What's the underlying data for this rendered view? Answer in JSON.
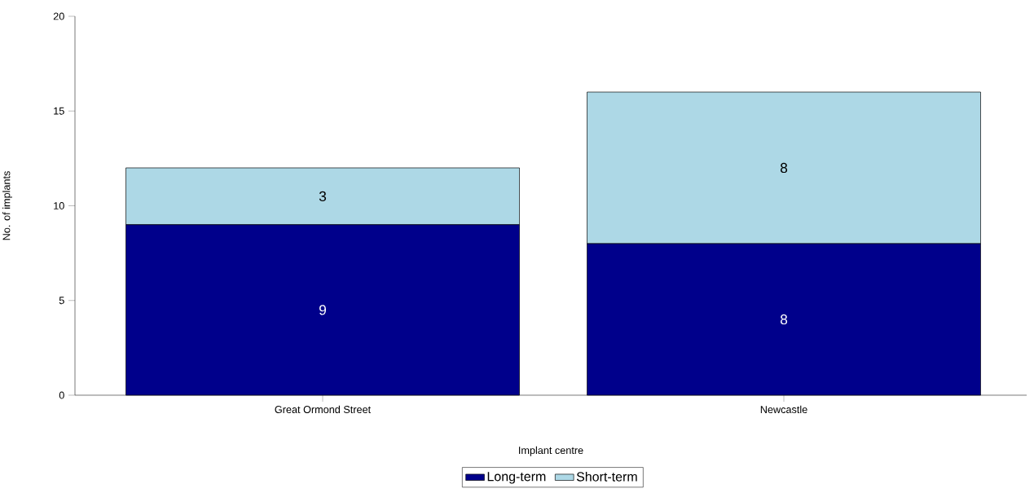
{
  "chart_data": {
    "type": "bar",
    "stacked": true,
    "xlabel": "Implant centre",
    "ylabel": "No. of implants",
    "categories": [
      "Great Ormond Street",
      "Newcastle"
    ],
    "series": [
      {
        "name": "Long-term",
        "color": "#00008b",
        "values": [
          9,
          8
        ]
      },
      {
        "name": "Short-term",
        "color": "#add8e6",
        "values": [
          3,
          8
        ]
      }
    ],
    "ylim": [
      0,
      20
    ],
    "yticks": [
      0,
      5,
      10,
      15,
      20
    ],
    "data_labels": true,
    "legend": "bottom",
    "grid": false
  }
}
